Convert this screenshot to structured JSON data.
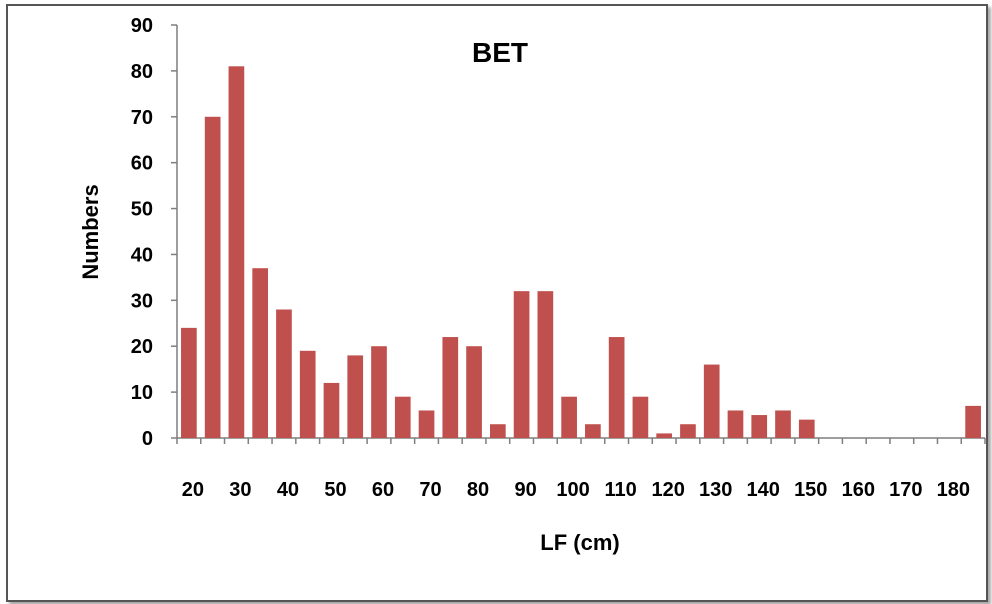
{
  "chart_data": {
    "type": "bar",
    "title": "BET",
    "xlabel": "LF (cm)",
    "ylabel": "Numbers",
    "ylim": [
      0,
      90
    ],
    "yticks": [
      "0",
      "10",
      "20",
      "30",
      "40",
      "50",
      "60",
      "70",
      "80",
      "90"
    ],
    "xtick_labels": [
      "20",
      "30",
      "40",
      "50",
      "60",
      "70",
      "80",
      "90",
      "100",
      "110",
      "120",
      "130",
      "140",
      "150",
      "160",
      "170",
      "180"
    ],
    "x": [
      20,
      25,
      30,
      35,
      40,
      45,
      50,
      55,
      60,
      65,
      70,
      75,
      80,
      85,
      90,
      95,
      100,
      105,
      110,
      115,
      120,
      125,
      130,
      135,
      140,
      145,
      150,
      155,
      160,
      165,
      170,
      175,
      180,
      185
    ],
    "values": [
      24,
      70,
      81,
      37,
      28,
      19,
      12,
      18,
      20,
      9,
      6,
      22,
      20,
      3,
      32,
      32,
      9,
      3,
      22,
      9,
      1,
      3,
      16,
      6,
      5,
      6,
      4,
      0,
      0,
      0,
      0,
      0,
      0,
      7
    ],
    "bar_color": "#c0504d",
    "grid": false,
    "legend": false
  }
}
